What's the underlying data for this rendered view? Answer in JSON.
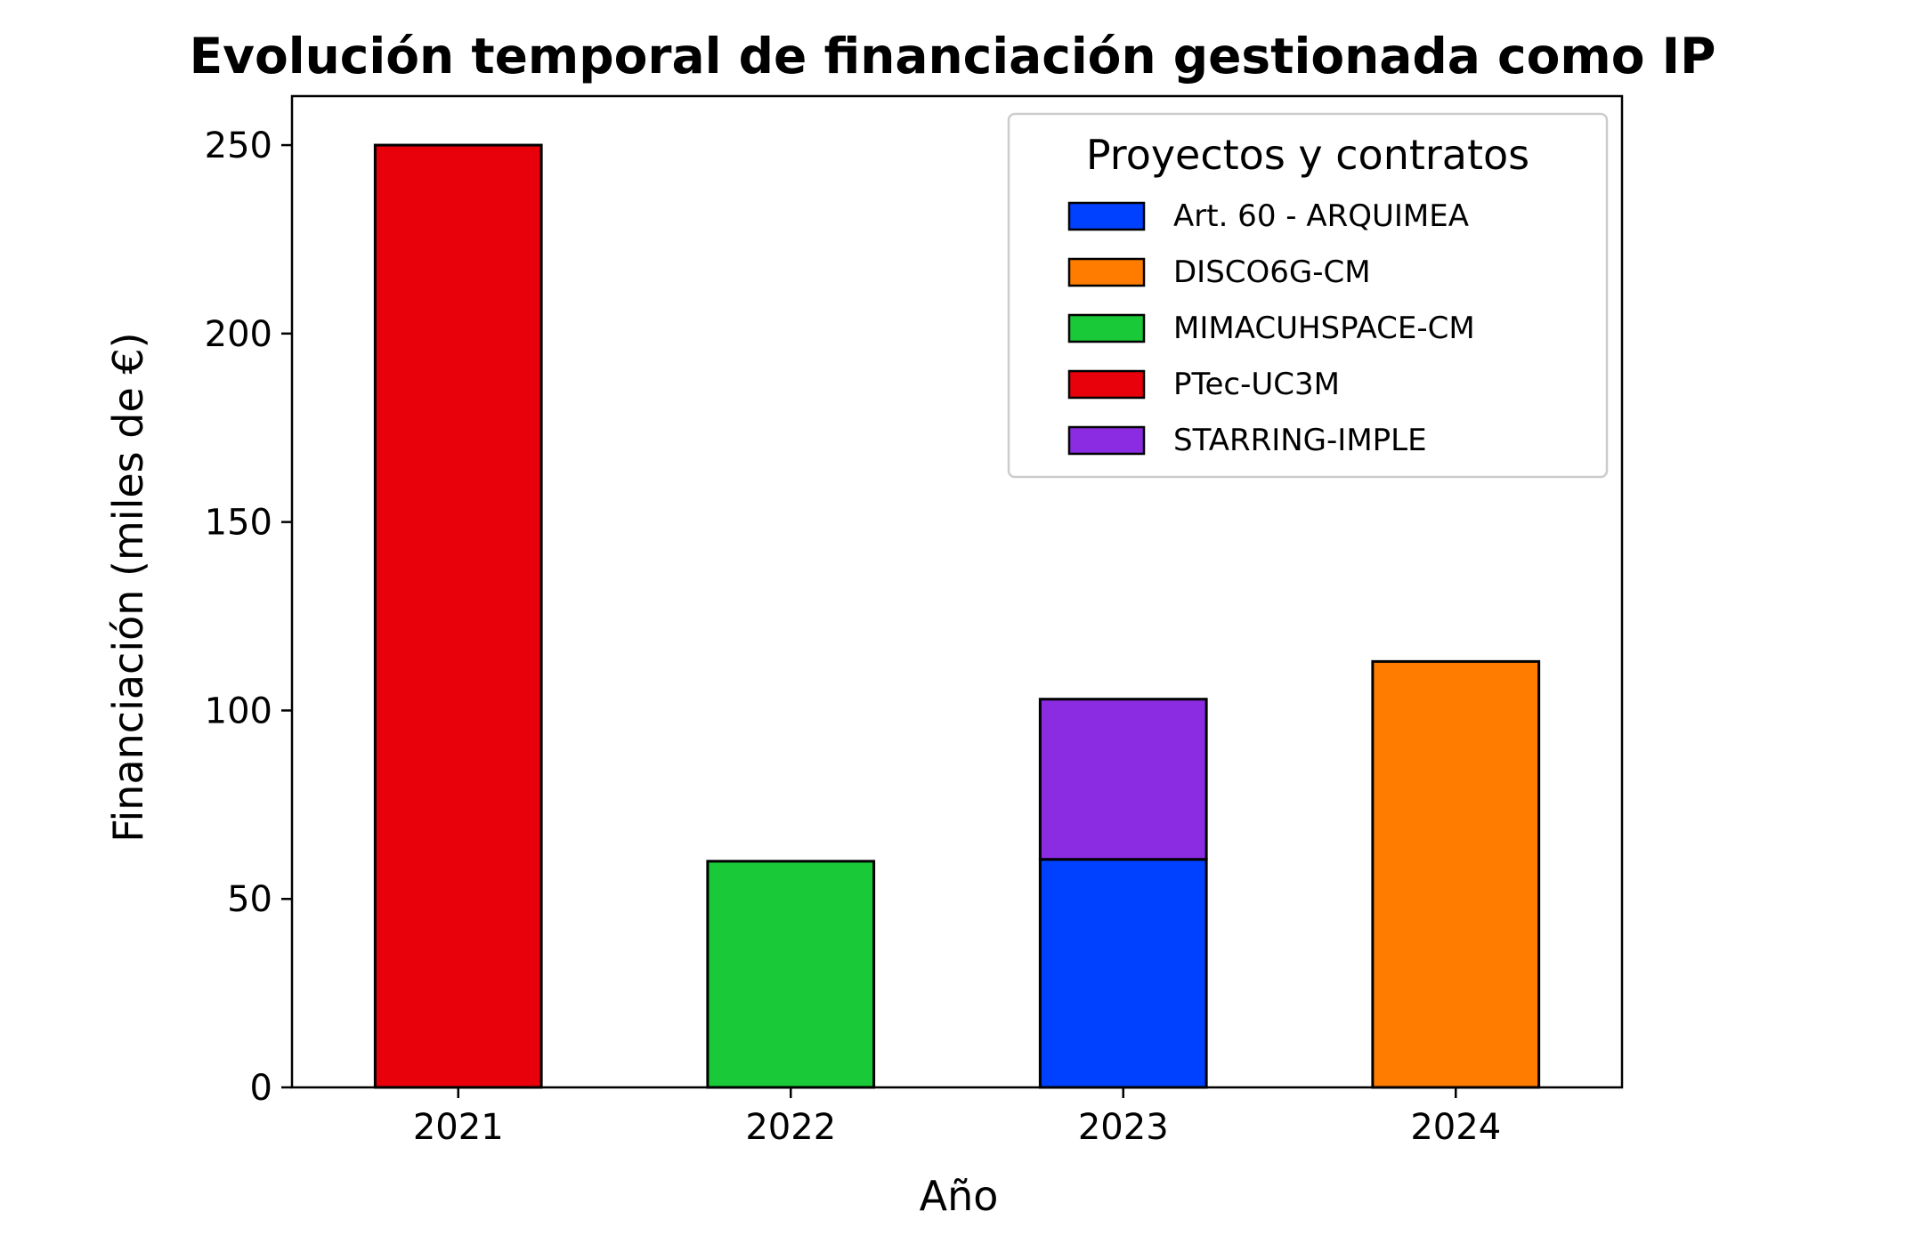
{
  "chart_data": {
    "type": "bar",
    "stacked": true,
    "title": "Evolución temporal de financiación gestionada como IP",
    "xlabel": "Año",
    "ylabel": "Financiación (miles de €)",
    "categories": [
      "2021",
      "2022",
      "2023",
      "2024"
    ],
    "ylim": [
      0,
      263
    ],
    "yticks": [
      0,
      50,
      100,
      150,
      200,
      250
    ],
    "grid": false,
    "legend": {
      "title": "Proyectos y contratos",
      "placement": "top-right"
    },
    "series": [
      {
        "name": "Art. 60 - ARQUIMEA",
        "color": "#0041ff",
        "values": [
          0,
          0,
          60.5,
          0
        ]
      },
      {
        "name": "DISCO6G-CM",
        "color": "#ff7c00",
        "values": [
          0,
          0,
          0,
          113
        ]
      },
      {
        "name": "MIMACUHSPACE-CM",
        "color": "#1ac938",
        "values": [
          0,
          60,
          0,
          0
        ]
      },
      {
        "name": "PTec-UC3M",
        "color": "#e8000b",
        "values": [
          250,
          0,
          0,
          0
        ]
      },
      {
        "name": "STARRING-IMPLE",
        "color": "#8b2be2",
        "values": [
          0,
          0,
          42.5,
          0
        ]
      }
    ]
  }
}
